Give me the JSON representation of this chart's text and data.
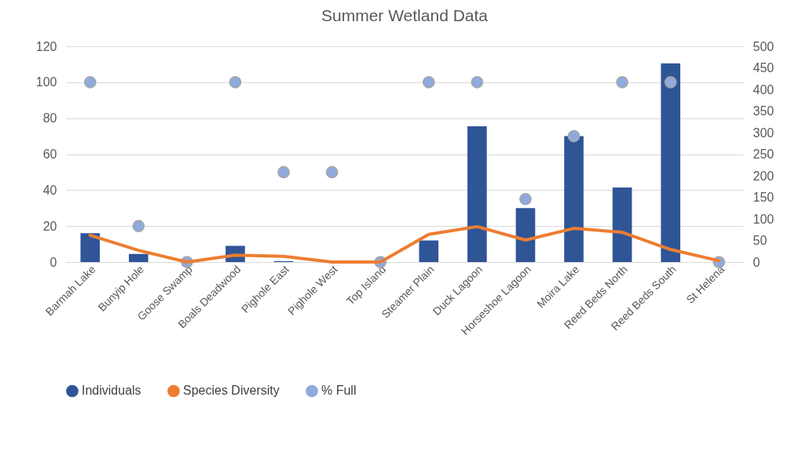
{
  "chart_data": {
    "type": "bar",
    "title": "Summer Wetland Data",
    "categories": [
      "Barmah Lake",
      "Bunyip Hole",
      "Goose Swamp",
      "Boals Deadwood",
      "Pighole East",
      "Pighole West",
      "Top Island",
      "Steamer Plain",
      "Duck Lagoon",
      "Horseshoe Lagoon",
      "Moira Lake",
      "Reed Beds North",
      "Reed Beds South",
      "St Helena"
    ],
    "series": [
      {
        "name": "Individuals",
        "type": "bar",
        "color": "#2f5597",
        "values": [
          16,
          4.5,
          0,
          9,
          0.5,
          0,
          0,
          12,
          75.5,
          30,
          70,
          41.5,
          110.5,
          0
        ]
      },
      {
        "name": "Species Diversity",
        "type": "line",
        "axis": "y2",
        "color": "#ed7d31",
        "values": [
          62,
          27,
          0,
          16,
          13,
          0,
          0,
          64,
          82,
          51,
          78,
          69,
          29,
          3
        ]
      },
      {
        "name": "% Full",
        "type": "scatter",
        "marker": "circle",
        "color": "#8faadc",
        "values": [
          100,
          20,
          0,
          100,
          50,
          50,
          0,
          100,
          100,
          35,
          70,
          100,
          100,
          0
        ]
      }
    ],
    "ylim": [
      0,
      120
    ],
    "yticks": [
      0,
      20,
      40,
      60,
      80,
      100,
      120
    ],
    "y2lim": [
      0,
      500
    ],
    "y2ticks": [
      0,
      50,
      100,
      150,
      200,
      250,
      300,
      350,
      400,
      450,
      500
    ],
    "grid": "y",
    "legend": "bottom"
  }
}
